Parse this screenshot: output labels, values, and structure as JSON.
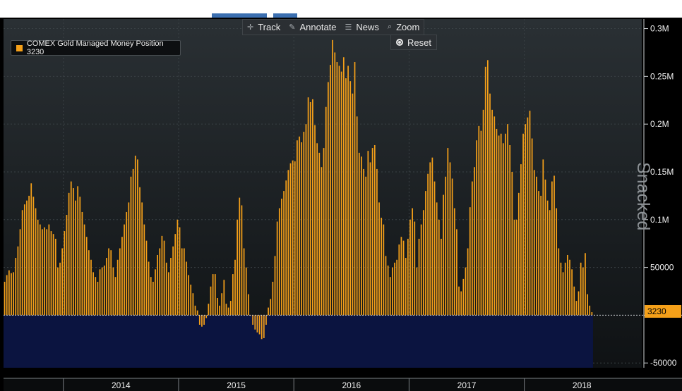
{
  "toolbar": {
    "track_label": "Track",
    "annotate_label": "Annotate",
    "news_label": "News",
    "zoom_label": "Zoom",
    "reset_label": "Reset"
  },
  "watermark": "Snacked",
  "last_value_label": "3230",
  "colors": {
    "bar": "#f5a019",
    "negative_fill": "#0b1440",
    "background_top": "#2a3034",
    "background_bottom": "#0f1214"
  },
  "chart_data": {
    "type": "bar",
    "title": "",
    "xlabel": "",
    "ylabel": "",
    "legend": {
      "placement": "top-left",
      "entries": [
        "COMEX Gold Managed Money Position 3230"
      ]
    },
    "grid": true,
    "ylim": [
      -55000,
      310000
    ],
    "y_ticks": [
      -50000,
      0,
      50000,
      100000,
      150000,
      200000,
      250000,
      300000
    ],
    "y_tick_labels": [
      "-50000",
      "",
      "50000",
      "0.1M",
      "0.15M",
      "0.2M",
      "0.25M",
      "0.3M"
    ],
    "x_ticks": [
      {
        "label": "2014",
        "x": 0
      },
      {
        "label": "2015",
        "x": 52
      },
      {
        "label": "2016",
        "x": 104
      },
      {
        "label": "2017",
        "x": 156
      },
      {
        "label": "2018",
        "x": 208
      }
    ],
    "x_start_week": -27,
    "series": [
      {
        "name": "COMEX Gold Managed Money Position",
        "last_value": 3230,
        "values": [
          35000,
          42000,
          47000,
          44000,
          45000,
          60000,
          72000,
          90000,
          110000,
          116000,
          120000,
          125000,
          138000,
          124000,
          112000,
          100000,
          95000,
          90000,
          92000,
          90000,
          95000,
          88000,
          85000,
          80000,
          50000,
          55000,
          70000,
          88000,
          105000,
          128000,
          140000,
          133000,
          120000,
          135000,
          124000,
          108000,
          95000,
          82000,
          68000,
          58000,
          45000,
          40000,
          35000,
          48000,
          50000,
          52000,
          60000,
          70000,
          68000,
          50000,
          40000,
          58000,
          70000,
          82000,
          95000,
          108000,
          118000,
          145000,
          153000,
          167000,
          163000,
          134000,
          118000,
          95000,
          78000,
          56000,
          40000,
          35000,
          48000,
          63000,
          70000,
          83000,
          78000,
          55000,
          45000,
          60000,
          72000,
          85000,
          100000,
          92000,
          70000,
          70000,
          56000,
          42000,
          32000,
          23000,
          10000,
          5000,
          -10000,
          -12000,
          -10000,
          -3000,
          12000,
          30000,
          43000,
          43000,
          18000,
          10000,
          23000,
          37000,
          12000,
          8000,
          15000,
          43000,
          58000,
          100000,
          123000,
          115000,
          70000,
          50000,
          22000,
          0,
          -10000,
          -15000,
          -18000,
          -20000,
          -25000,
          -24000,
          -10000,
          8000,
          17000,
          35000,
          62000,
          98000,
          112000,
          122000,
          130000,
          141000,
          152000,
          159000,
          162000,
          161000,
          183000,
          187000,
          181000,
          192000,
          200000,
          228000,
          223000,
          226000,
          199000,
          180000,
          170000,
          155000,
          175000,
          218000,
          244000,
          262000,
          288000,
          275000,
          265000,
          261000,
          255000,
          270000,
          248000,
          261000,
          245000,
          232000,
          265000,
          208000,
          170000,
          166000,
          153000,
          145000,
          172000,
          160000,
          175000,
          178000,
          153000,
          118000,
          102000,
          95000,
          62000,
          52000,
          40000,
          50000,
          55000,
          58000,
          74000,
          82000,
          78000,
          60000,
          80000,
          100000,
          112000,
          98000,
          50000,
          80000,
          95000,
          110000,
          130000,
          148000,
          160000,
          165000,
          140000,
          118000,
          100000,
          80000,
          126000,
          145000,
          175000,
          160000,
          143000,
          112000,
          90000,
          30000,
          25000,
          38000,
          50000,
          70000,
          113000,
          140000,
          155000,
          183000,
          198000,
          193000,
          215000,
          260000,
          267000,
          232000,
          215000,
          208000,
          195000,
          188000,
          190000,
          180000,
          190000,
          200000,
          178000,
          150000,
          100000,
          100000,
          128000,
          158000,
          190000,
          200000,
          207000,
          214000,
          185000,
          152000,
          145000,
          130000,
          125000,
          163000,
          142000,
          120000,
          110000,
          140000,
          146000,
          112000,
          70000,
          55000,
          45000,
          55000,
          63000,
          58000,
          48000,
          30000,
          15000,
          25000,
          55000,
          50000,
          65000,
          22000,
          10000,
          3230
        ]
      }
    ]
  }
}
